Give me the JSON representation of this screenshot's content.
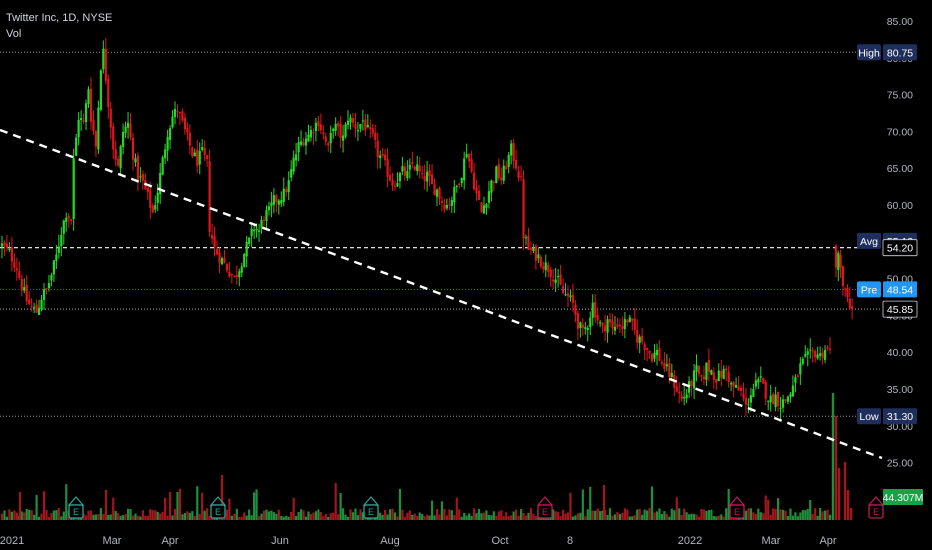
{
  "header": {
    "title": "Twitter Inc, 1D, NYSE",
    "volume_label": "Vol"
  },
  "colors": {
    "up": "#26d926",
    "down": "#e0161b",
    "background": "#000000",
    "grid_dotted": "#8a8d96",
    "blue_line": "#2962ff",
    "badge_dark": "#1e2f5e",
    "badge_blue": "#2196f3",
    "trendline": "#ffffff",
    "earnings_up": "#26a69a",
    "earnings_down": "#c2185b"
  },
  "chart_data": {
    "type": "candlestick",
    "title": "Twitter Inc, 1D, NYSE",
    "price_axis": {
      "ylim": [
        22,
        87
      ],
      "ticks": [
        "85.00",
        "80.00",
        "75.00",
        "70.00",
        "65.00",
        "60.00",
        "55.00",
        "50.00",
        "45.00",
        "40.00",
        "35.00",
        "30.00",
        "25.00"
      ]
    },
    "time_axis": [
      "2021",
      "Mar",
      "Apr",
      "Jun",
      "Aug",
      "Oct",
      "8",
      "2022",
      "Mar",
      "Apr"
    ],
    "price_labels": [
      {
        "name": "High",
        "value": "80.75",
        "style": "dark"
      },
      {
        "name": "Avg",
        "value": "55.12",
        "style": "dark"
      },
      {
        "name": "",
        "value": "54.20",
        "style": "plain"
      },
      {
        "name": "Pre",
        "value": "48.54",
        "style": "blue"
      },
      {
        "name": "",
        "value": "45.85",
        "style": "plain"
      },
      {
        "name": "Low",
        "value": "31.30",
        "style": "dark"
      }
    ],
    "volume_label": "44.307M",
    "earnings_markers": [
      {
        "label": "E",
        "color": "green"
      },
      {
        "label": "E",
        "color": "green"
      },
      {
        "label": "E",
        "color": "green"
      },
      {
        "label": "E",
        "color": "red"
      },
      {
        "label": "E",
        "color": "red"
      },
      {
        "label": "E",
        "color": "red"
      },
      {
        "label": "E",
        "color": "outline"
      }
    ],
    "key_levels": {
      "high": 80.75,
      "avg": 55.12,
      "previous_close": 54.2,
      "premarket": 48.54,
      "last": 45.85,
      "low": 31.3
    },
    "trendline": {
      "style": "dashed",
      "color": "white"
    },
    "anchors": [
      [
        0,
        54.5
      ],
      [
        3,
        53.5
      ],
      [
        6,
        51.5
      ],
      [
        8,
        49
      ],
      [
        10,
        47
      ],
      [
        12,
        46
      ],
      [
        14,
        45.5
      ],
      [
        16,
        47.5
      ],
      [
        18,
        48.5
      ],
      [
        20,
        50.5
      ],
      [
        22,
        53
      ],
      [
        24,
        56.5
      ],
      [
        26,
        59
      ],
      [
        28,
        58
      ],
      [
        29,
        66
      ],
      [
        31,
        72
      ],
      [
        33,
        71
      ],
      [
        35,
        76
      ],
      [
        36,
        72
      ],
      [
        38,
        68
      ],
      [
        40,
        79
      ],
      [
        41,
        80.75
      ],
      [
        43,
        74
      ],
      [
        45,
        68
      ],
      [
        47,
        65
      ],
      [
        49,
        70
      ],
      [
        51,
        71
      ],
      [
        53,
        67
      ],
      [
        55,
        64
      ],
      [
        57,
        63
      ],
      [
        59,
        61
      ],
      [
        61,
        59
      ],
      [
        63,
        62
      ],
      [
        65,
        66
      ],
      [
        67,
        70
      ],
      [
        69,
        72
      ],
      [
        71,
        73
      ],
      [
        73,
        71
      ],
      [
        75,
        69
      ],
      [
        77,
        67
      ],
      [
        79,
        66
      ],
      [
        81,
        67
      ],
      [
        83,
        65.5
      ],
      [
        84,
        57
      ],
      [
        86,
        54
      ],
      [
        88,
        53
      ],
      [
        90,
        52
      ],
      [
        92,
        51
      ],
      [
        94,
        50
      ],
      [
        96,
        51.5
      ],
      [
        98,
        53.5
      ],
      [
        100,
        55
      ],
      [
        102,
        57
      ],
      [
        104,
        56.5
      ],
      [
        106,
        58.5
      ],
      [
        108,
        59
      ],
      [
        110,
        60.5
      ],
      [
        112,
        61
      ],
      [
        114,
        61.5
      ],
      [
        116,
        63
      ],
      [
        118,
        66
      ],
      [
        120,
        68
      ],
      [
        122,
        69
      ],
      [
        124,
        69.5
      ],
      [
        126,
        70.5
      ],
      [
        128,
        71.5
      ],
      [
        130,
        69.5
      ],
      [
        132,
        67.5
      ],
      [
        134,
        71
      ],
      [
        136,
        70
      ],
      [
        138,
        69
      ],
      [
        140,
        72
      ],
      [
        142,
        71
      ],
      [
        144,
        70.5
      ],
      [
        146,
        71.5
      ],
      [
        148,
        70
      ],
      [
        150,
        69
      ],
      [
        152,
        67
      ],
      [
        154,
        66
      ],
      [
        156,
        64.5
      ],
      [
        158,
        63
      ],
      [
        160,
        63.5
      ],
      [
        162,
        64.5
      ],
      [
        164,
        64
      ],
      [
        166,
        65.5
      ],
      [
        168,
        65
      ],
      [
        170,
        63.5
      ],
      [
        172,
        64
      ],
      [
        174,
        62.5
      ],
      [
        176,
        62
      ],
      [
        178,
        60.5
      ],
      [
        180,
        60
      ],
      [
        182,
        61
      ],
      [
        184,
        62.5
      ],
      [
        186,
        64.5
      ],
      [
        188,
        67.5
      ],
      [
        190,
        64.5
      ],
      [
        192,
        61.5
      ],
      [
        194,
        59
      ],
      [
        196,
        61
      ],
      [
        198,
        63
      ],
      [
        200,
        64.5
      ],
      [
        202,
        63.5
      ],
      [
        204,
        65.5
      ],
      [
        206,
        67.5
      ],
      [
        208,
        65.5
      ],
      [
        210,
        63
      ],
      [
        211,
        56
      ],
      [
        213,
        54
      ],
      [
        215,
        53.5
      ],
      [
        217,
        53
      ],
      [
        219,
        52
      ],
      [
        221,
        51.5
      ],
      [
        223,
        50.5
      ],
      [
        225,
        49.5
      ],
      [
        227,
        48
      ],
      [
        229,
        47.5
      ],
      [
        231,
        46.5
      ],
      [
        233,
        44
      ],
      [
        235,
        42.5
      ],
      [
        237,
        44
      ],
      [
        239,
        46.5
      ],
      [
        241,
        44.5
      ],
      [
        243,
        43
      ],
      [
        245,
        44.5
      ],
      [
        247,
        43
      ],
      [
        249,
        44
      ],
      [
        251,
        43.5
      ],
      [
        253,
        44.5
      ],
      [
        255,
        43.5
      ],
      [
        257,
        42
      ],
      [
        259,
        41.5
      ],
      [
        261,
        40.5
      ],
      [
        263,
        39.5
      ],
      [
        265,
        40
      ],
      [
        267,
        38.5
      ],
      [
        269,
        37.5
      ],
      [
        271,
        36.5
      ],
      [
        273,
        35
      ],
      [
        275,
        33.5
      ],
      [
        277,
        34.5
      ],
      [
        279,
        36
      ],
      [
        281,
        37.5
      ],
      [
        283,
        36
      ],
      [
        285,
        38
      ],
      [
        287,
        37.5
      ],
      [
        289,
        36.5
      ],
      [
        291,
        37
      ],
      [
        293,
        37.5
      ],
      [
        295,
        35.5
      ],
      [
        297,
        35
      ],
      [
        299,
        34.5
      ],
      [
        301,
        32.5
      ],
      [
        303,
        34.5
      ],
      [
        305,
        35.5
      ],
      [
        307,
        36
      ],
      [
        309,
        34.5
      ],
      [
        311,
        33.5
      ],
      [
        313,
        34
      ],
      [
        315,
        33
      ],
      [
        317,
        33.5
      ],
      [
        319,
        34.5
      ],
      [
        321,
        36
      ],
      [
        323,
        38
      ],
      [
        325,
        39
      ],
      [
        327,
        39.5
      ],
      [
        329,
        40
      ],
      [
        331,
        39.5
      ],
      [
        333,
        40.5
      ],
      [
        335,
        40
      ]
    ],
    "gap_then": [
      [
        0,
        51.5
      ],
      [
        1,
        53.5
      ],
      [
        2,
        51.5
      ],
      [
        3,
        49
      ],
      [
        4,
        48.5
      ],
      [
        5,
        47.5
      ],
      [
        6,
        46
      ],
      [
        7,
        45.85
      ]
    ]
  }
}
